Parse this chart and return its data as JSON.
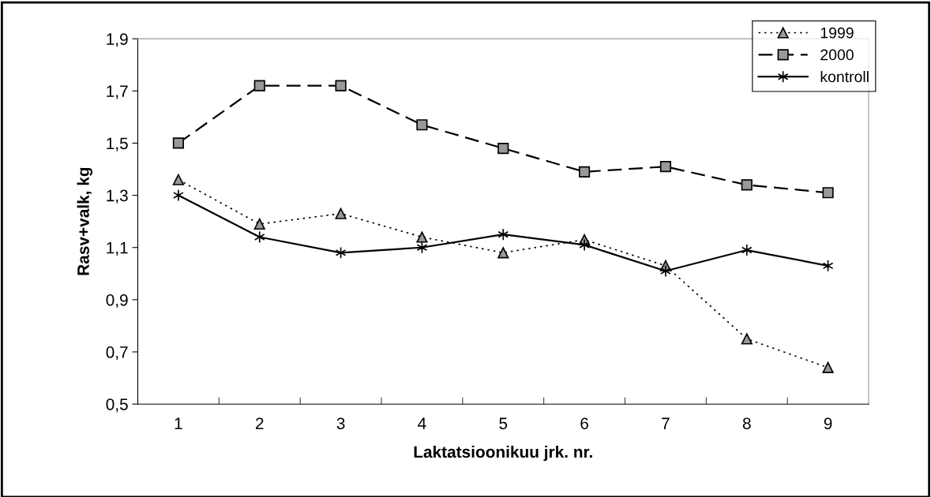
{
  "chart_data": {
    "type": "line",
    "xlabel": "Laktatsioonikuu jrk. nr.",
    "ylabel": "Rasv+valk, kg",
    "categories": [
      "1",
      "2",
      "3",
      "4",
      "5",
      "6",
      "7",
      "8",
      "9"
    ],
    "series": [
      {
        "name": "1999",
        "color": "#000000",
        "marker": "triangle",
        "line_style": "dotted",
        "values": [
          1.36,
          1.19,
          1.23,
          1.14,
          1.08,
          1.13,
          1.03,
          0.75,
          0.64
        ]
      },
      {
        "name": "2000",
        "color": "#000000",
        "marker": "square",
        "line_style": "dashed",
        "values": [
          1.5,
          1.72,
          1.72,
          1.57,
          1.48,
          1.39,
          1.41,
          1.34,
          1.31
        ]
      },
      {
        "name": "kontroll",
        "color": "#000000",
        "marker": "cross",
        "line_style": "solid",
        "values": [
          1.3,
          1.14,
          1.08,
          1.1,
          1.15,
          1.11,
          1.01,
          1.09,
          1.03
        ]
      }
    ],
    "ylim": [
      0.5,
      1.9
    ],
    "yticks": [
      {
        "value": 0.5,
        "label": "0,5"
      },
      {
        "value": 0.7,
        "label": "0,7"
      },
      {
        "value": 0.9,
        "label": "0,9"
      },
      {
        "value": 1.1,
        "label": "1,1"
      },
      {
        "value": 1.3,
        "label": "1,3"
      },
      {
        "value": 1.5,
        "label": "1,5"
      },
      {
        "value": 1.7,
        "label": "1,7"
      },
      {
        "value": 1.9,
        "label": "1,9"
      }
    ],
    "grid": false,
    "legend": "top right"
  }
}
